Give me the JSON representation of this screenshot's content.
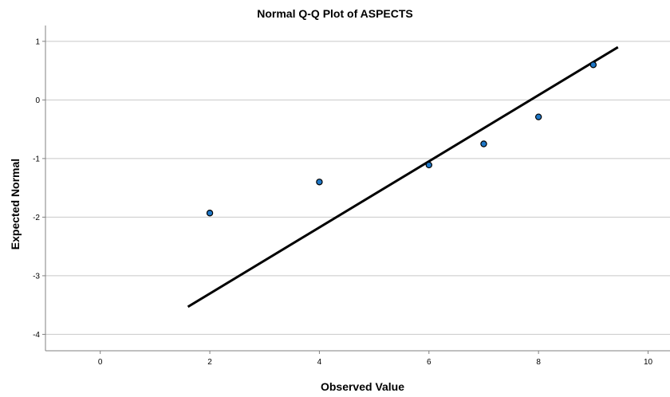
{
  "chart_data": {
    "type": "scatter",
    "title": "Normal Q-Q Plot of ASPECTS",
    "xlabel": "Observed Value",
    "ylabel": "Expected Normal",
    "xlim": [
      -1.0,
      10.4
    ],
    "ylim": [
      -4.28,
      1.27
    ],
    "xticks": [
      0,
      2,
      4,
      6,
      8,
      10
    ],
    "yticks": [
      1,
      0,
      -1,
      -2,
      -3,
      -4
    ],
    "grid": "horizontal",
    "legend": "none",
    "points": [
      {
        "x": 2,
        "y": -1.93
      },
      {
        "x": 4,
        "y": -1.4
      },
      {
        "x": 6,
        "y": -1.11
      },
      {
        "x": 7,
        "y": -0.75
      },
      {
        "x": 8,
        "y": -0.29
      },
      {
        "x": 9,
        "y": 0.6
      }
    ],
    "reference_line": {
      "x": [
        1.6,
        9.45
      ],
      "y": [
        -3.53,
        0.9
      ]
    },
    "colors": {
      "point_fill": "#1f77c6",
      "point_edge": "#000000",
      "line": "#000000",
      "grid": "#c8c8c8",
      "axis": "#808080"
    }
  }
}
